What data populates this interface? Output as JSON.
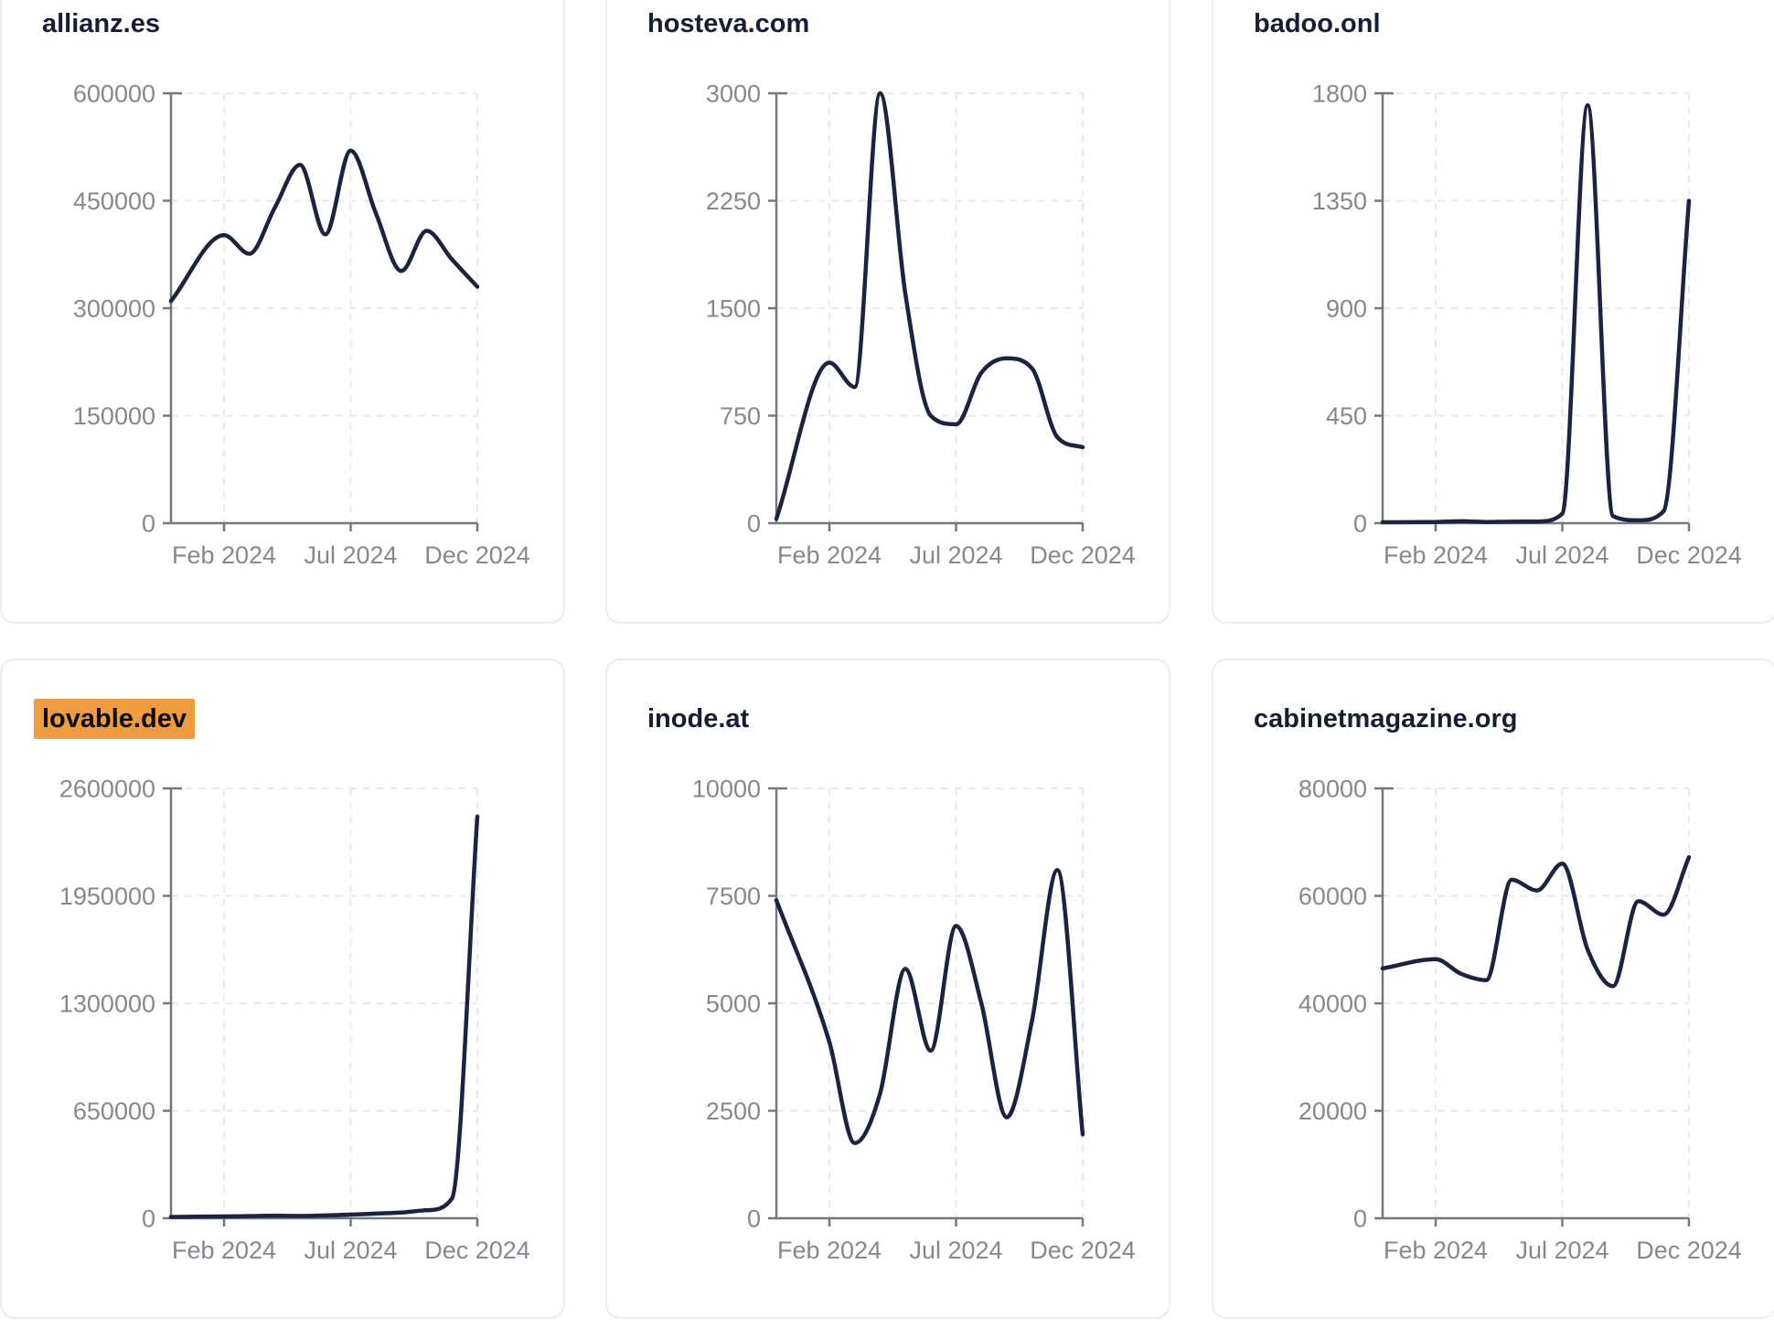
{
  "page": {
    "background": "#ffffff",
    "card_background": "#ffffff",
    "card_border": "#e9edf2",
    "line_color": "#1c2340",
    "axis_color": "#74787d",
    "tick_label_color": "#85888d",
    "grid_color": "#e7e9ec",
    "title_color": "#161e36",
    "highlight_bg": "#ef9b40",
    "highlight_text": "#0c0c0c"
  },
  "months": [
    "Jan 2024",
    "Feb 2024",
    "Mar 2024",
    "Apr 2024",
    "May 2024",
    "Jun 2024",
    "Jul 2024",
    "Aug 2024",
    "Sep 2024",
    "Oct 2024",
    "Nov 2024",
    "Dec 2024"
  ],
  "x_tick_labels": [
    "Feb 2024",
    "Jul 2024",
    "Dec 2024"
  ],
  "chart_data": [
    {
      "type": "line",
      "title": "allianz.es",
      "highlighted": false,
      "x": [
        "Jan 2024",
        "Feb 2024",
        "Mar 2024",
        "Apr 2024",
        "May 2024",
        "Jun 2024",
        "Jul 2024",
        "Aug 2024",
        "Sep 2024",
        "Oct 2024",
        "Nov 2024",
        "Dec 2024"
      ],
      "values": [
        310000,
        402000,
        376000,
        440000,
        500000,
        403000,
        520000,
        432000,
        352000,
        408000,
        368000,
        330000
      ],
      "ylim": [
        0,
        600000
      ],
      "yticks": [
        0,
        150000,
        300000,
        450000,
        600000
      ],
      "xticks": [
        "Feb 2024",
        "Jul 2024",
        "Dec 2024"
      ],
      "grid": true,
      "legend": "none"
    },
    {
      "type": "line",
      "title": "hosteva.com",
      "highlighted": false,
      "x": [
        "Jan 2024",
        "Feb 2024",
        "Mar 2024",
        "Apr 2024",
        "May 2024",
        "Jun 2024",
        "Jul 2024",
        "Aug 2024",
        "Sep 2024",
        "Oct 2024",
        "Nov 2024",
        "Dec 2024"
      ],
      "values": [
        30,
        1120,
        950,
        3000,
        1600,
        750,
        690,
        1050,
        1150,
        1080,
        600,
        530
      ],
      "ylim": [
        0,
        3000
      ],
      "yticks": [
        0,
        750,
        1500,
        2250,
        3000
      ],
      "xticks": [
        "Feb 2024",
        "Jul 2024",
        "Dec 2024"
      ],
      "grid": true,
      "legend": "none"
    },
    {
      "type": "line",
      "title": "badoo.onl",
      "highlighted": false,
      "x": [
        "Jan 2024",
        "Feb 2024",
        "Mar 2024",
        "Apr 2024",
        "May 2024",
        "Jun 2024",
        "Jul 2024",
        "Aug 2024",
        "Sep 2024",
        "Oct 2024",
        "Nov 2024",
        "Dec 2024"
      ],
      "values": [
        4,
        5,
        8,
        5,
        6,
        7,
        40,
        1750,
        30,
        12,
        50,
        1350
      ],
      "ylim": [
        0,
        1800
      ],
      "yticks": [
        0,
        450,
        900,
        1350,
        1800
      ],
      "xticks": [
        "Feb 2024",
        "Jul 2024",
        "Dec 2024"
      ],
      "grid": true,
      "legend": "none"
    },
    {
      "type": "line",
      "title": "lovable.dev",
      "highlighted": true,
      "x": [
        "Jan 2024",
        "Feb 2024",
        "Mar 2024",
        "Apr 2024",
        "May 2024",
        "Jun 2024",
        "Jul 2024",
        "Aug 2024",
        "Sep 2024",
        "Oct 2024",
        "Nov 2024",
        "Dec 2024"
      ],
      "values": [
        8000,
        11000,
        13000,
        15000,
        14000,
        17000,
        22000,
        28000,
        35000,
        48000,
        120000,
        2430000
      ],
      "ylim": [
        0,
        2600000
      ],
      "yticks": [
        0,
        650000,
        1300000,
        1950000,
        2600000
      ],
      "xticks": [
        "Feb 2024",
        "Jul 2024",
        "Dec 2024"
      ],
      "grid": true,
      "legend": "none"
    },
    {
      "type": "line",
      "title": "inode.at",
      "highlighted": false,
      "x": [
        "Jan 2024",
        "Feb 2024",
        "Mar 2024",
        "Apr 2024",
        "May 2024",
        "Jun 2024",
        "Jul 2024",
        "Aug 2024",
        "Sep 2024",
        "Oct 2024",
        "Nov 2024",
        "Dec 2024"
      ],
      "values": [
        7400,
        4100,
        1750,
        2900,
        5800,
        3900,
        6800,
        5000,
        2350,
        4600,
        8100,
        1950
      ],
      "ylim": [
        0,
        10000
      ],
      "yticks": [
        0,
        2500,
        5000,
        7500,
        10000
      ],
      "xticks": [
        "Feb 2024",
        "Jul 2024",
        "Dec 2024"
      ],
      "grid": true,
      "legend": "none"
    },
    {
      "type": "line",
      "title": "cabinetmagazine.org",
      "highlighted": false,
      "x": [
        "Jan 2024",
        "Feb 2024",
        "Mar 2024",
        "Apr 2024",
        "May 2024",
        "Jun 2024",
        "Jul 2024",
        "Aug 2024",
        "Sep 2024",
        "Oct 2024",
        "Nov 2024",
        "Dec 2024"
      ],
      "values": [
        46500,
        48200,
        45500,
        44300,
        63000,
        61000,
        66000,
        50000,
        43200,
        59000,
        56500,
        67200
      ],
      "ylim": [
        0,
        80000
      ],
      "yticks": [
        0,
        20000,
        40000,
        60000,
        80000
      ],
      "xticks": [
        "Feb 2024",
        "Jul 2024",
        "Dec 2024"
      ],
      "grid": true,
      "legend": "none"
    }
  ]
}
